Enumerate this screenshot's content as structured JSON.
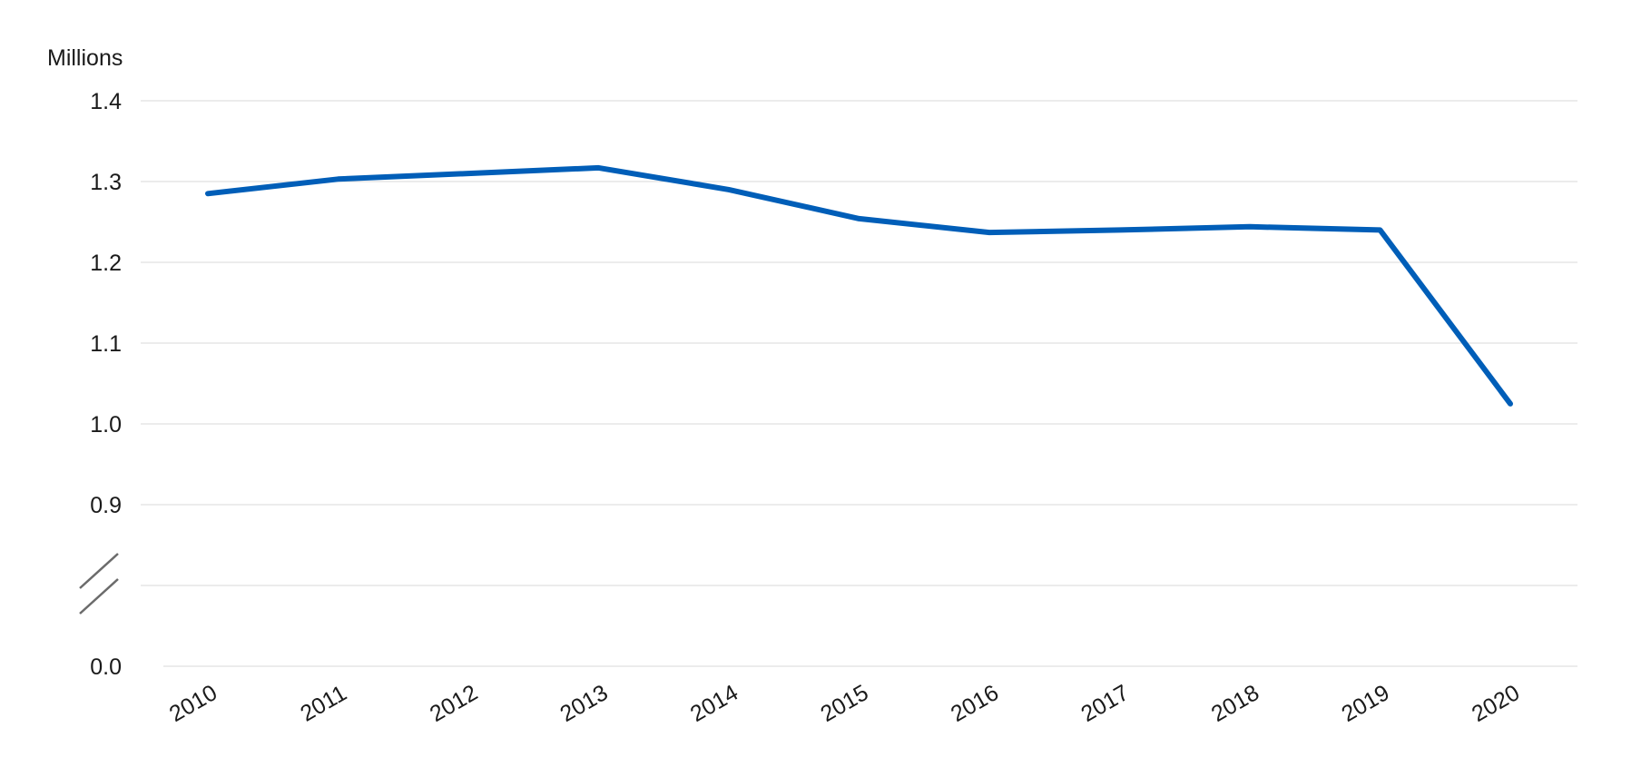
{
  "chart_data": {
    "type": "line",
    "title": "",
    "xlabel": "",
    "ylabel": "Millions",
    "x": [
      "2010",
      "2011",
      "2012",
      "2013",
      "2014",
      "2015",
      "2016",
      "2017",
      "2018",
      "2019",
      "2020"
    ],
    "series": [
      {
        "values": [
          1.285,
          1.303,
          1.31,
          1.317,
          1.29,
          1.254,
          1.237,
          1.24,
          1.244,
          1.24,
          1.025
        ]
      }
    ],
    "y_ticks": [
      {
        "value": 0.0,
        "label": "0.0"
      },
      {
        "value": 0.9,
        "label": "0.9"
      },
      {
        "value": 1.0,
        "label": "1.0"
      },
      {
        "value": 1.1,
        "label": "1.1"
      },
      {
        "value": 1.2,
        "label": "1.2"
      },
      {
        "value": 1.3,
        "label": "1.3"
      },
      {
        "value": 1.4,
        "label": "1.4"
      }
    ],
    "ylim": [
      0.0,
      1.4
    ],
    "y_axis_break": [
      0.0,
      0.9
    ],
    "grid": true,
    "legend": "none",
    "colors": {
      "line": "#005EB8",
      "grid": "#d9d9d9",
      "axis_break": "#6b6b6b",
      "text": "#1a1a1a"
    }
  }
}
